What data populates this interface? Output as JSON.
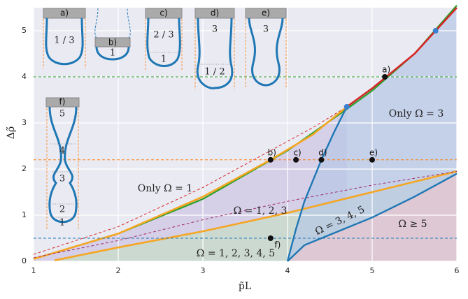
{
  "chart_data": {
    "type": "line",
    "xlabel": "p̃L",
    "ylabel": "Δρ̃",
    "xlim": [
      1,
      6
    ],
    "ylim": [
      0,
      5.5
    ],
    "xticks": [
      1,
      2,
      3,
      4,
      5,
      6
    ],
    "yticks": [
      0,
      1,
      2,
      3,
      4,
      5
    ],
    "grid": true,
    "series": [
      {
        "color": "#2ca02c",
        "style": "solid",
        "width": 2.2,
        "x": [
          1,
          2,
          3,
          4,
          4.7,
          5,
          5.5,
          6
        ],
        "values": [
          0.05,
          0.6,
          1.35,
          2.4,
          3.3,
          3.7,
          4.5,
          5.55
        ]
      },
      {
        "color": "#d62728",
        "style": "solid",
        "width": 2.6,
        "x": [
          4.7,
          5,
          5.5,
          5.75,
          6
        ],
        "values": [
          3.35,
          3.75,
          4.5,
          5.0,
          5.5
        ]
      },
      {
        "color": "#d62728",
        "style": "dashed",
        "width": 1,
        "x": [
          1,
          2,
          3,
          3.8,
          4.3,
          4.7
        ],
        "values": [
          0.15,
          0.75,
          1.6,
          2.4,
          2.9,
          3.35
        ]
      },
      {
        "color": "#f5a623",
        "style": "solid",
        "width": 2.6,
        "x": [
          1,
          2,
          3,
          3.8,
          4.3,
          4.7
        ],
        "values": [
          0.05,
          0.6,
          1.4,
          2.2,
          2.75,
          3.35
        ]
      },
      {
        "color": "#f5a623",
        "style": "solid",
        "width": 2.6,
        "x": [
          1.25,
          2,
          3,
          4,
          5,
          6
        ],
        "values": [
          0.02,
          0.3,
          0.65,
          1.05,
          1.5,
          1.95
        ]
      },
      {
        "color": "#a0306a",
        "style": "dashed",
        "width": 1,
        "x": [
          1,
          2,
          3,
          4,
          5,
          6
        ],
        "values": [
          0.08,
          0.45,
          0.9,
          1.3,
          1.65,
          1.95
        ]
      },
      {
        "color": "#1f77b4",
        "style": "solid",
        "width": 2.4,
        "x": [
          4,
          4.1,
          4.2,
          4.4,
          4.55,
          4.7
        ],
        "values": [
          0,
          0.7,
          1.3,
          2.2,
          2.8,
          3.35
        ]
      },
      {
        "color": "#1f77b4",
        "style": "solid",
        "width": 2.4,
        "x": [
          4,
          4.2,
          4.6,
          5,
          5.5,
          6
        ],
        "values": [
          0,
          0.35,
          0.65,
          0.95,
          1.4,
          1.9
        ]
      },
      {
        "color": "#2ca02c",
        "style": "dashed",
        "width": 1,
        "x": [
          1,
          6
        ],
        "values": [
          4,
          4
        ]
      },
      {
        "color": "#ff7f0e",
        "style": "dashed",
        "width": 1,
        "x": [
          1,
          6
        ],
        "values": [
          2.2,
          2.2
        ]
      },
      {
        "color": "#1f77b4",
        "style": "dashed",
        "width": 1,
        "x": [
          1,
          6
        ],
        "values": [
          0.5,
          0.5
        ]
      }
    ],
    "points": {
      "color": "#111111",
      "x": [
        5.15,
        3.8,
        4.1,
        4.4,
        5.0,
        3.8
      ],
      "values": [
        4.0,
        2.2,
        2.2,
        2.2,
        2.2,
        0.5
      ],
      "labels": [
        "a)",
        "b)",
        "c)",
        "d)",
        "e)",
        "f)"
      ]
    },
    "junctions": {
      "color": "#3a7fd0",
      "x": [
        4.7,
        5.75
      ],
      "values": [
        3.35,
        5.0
      ]
    },
    "regions": [
      {
        "text": "Only Ω = 3",
        "fill": "#b8c8e6"
      },
      {
        "text": "Only Ω = 1",
        "fill": "#eaeaf2"
      },
      {
        "text": "Ω = 1, 2, 3",
        "fill": "#cfc6e4"
      },
      {
        "text": "Ω = 3, 4, 5",
        "fill": "#c5c8e4"
      },
      {
        "text": "Ω ≥ 5",
        "fill": "#e8c5cf"
      },
      {
        "text": "Ω = 1, 2, 3, 4, 5",
        "fill": "#c8dcc8"
      }
    ]
  },
  "insets": [
    {
      "label": "a)",
      "texts": [
        "1 / 3"
      ]
    },
    {
      "label": "b)",
      "texts": [
        "1"
      ]
    },
    {
      "label": "c)",
      "texts": [
        "2 / 3",
        "1"
      ]
    },
    {
      "label": "d)",
      "texts": [
        "3",
        "1 / 2"
      ]
    },
    {
      "label": "e)",
      "texts": [
        "3"
      ]
    },
    {
      "label": "f)",
      "texts": [
        "5",
        "4",
        "3",
        "2",
        "1"
      ]
    }
  ]
}
